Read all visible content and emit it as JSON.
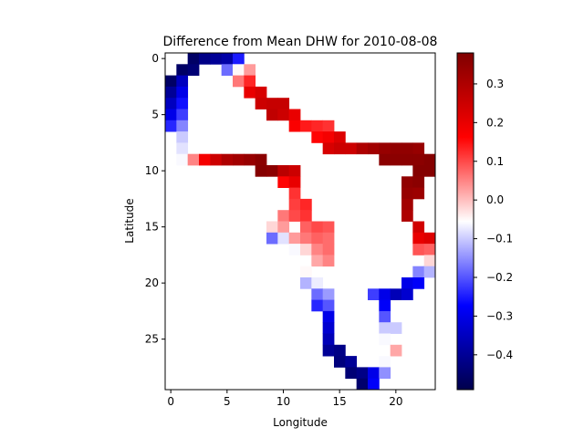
{
  "chart_data": {
    "type": "heatmap",
    "title": "Difference from Mean DHW for 2010-08-08",
    "xlabel": "Longitude",
    "ylabel": "Latitude",
    "x_ticks": [
      0,
      5,
      10,
      15,
      20
    ],
    "y_ticks": [
      0,
      5,
      10,
      15,
      20,
      25
    ],
    "colorbar_ticks": [
      0.3,
      0.2,
      0.1,
      0.0,
      -0.1,
      -0.2,
      -0.3,
      -0.4
    ],
    "colorbar_tick_labels": [
      "0.3",
      "0.2",
      "0.1",
      "0.0",
      "−0.1",
      "−0.2",
      "−0.3",
      "−0.4"
    ],
    "x_range": [
      -0.5,
      23.5
    ],
    "y_range": [
      29.5,
      -0.5
    ],
    "vmin": -0.49,
    "vmax": 0.38,
    "colormap": "seismic",
    "grid": false,
    "cells": [
      [
        2,
        0,
        -0.46
      ],
      [
        3,
        0,
        -0.42
      ],
      [
        4,
        0,
        -0.4
      ],
      [
        5,
        0,
        -0.38
      ],
      [
        6,
        0,
        -0.25
      ],
      [
        1,
        1,
        -0.46
      ],
      [
        2,
        1,
        -0.44
      ],
      [
        5,
        1,
        -0.18
      ],
      [
        6,
        1,
        -0.05
      ],
      [
        7,
        1,
        0.03
      ],
      [
        0,
        2,
        -0.46
      ],
      [
        1,
        2,
        -0.35
      ],
      [
        6,
        2,
        0.06
      ],
      [
        7,
        2,
        0.13
      ],
      [
        0,
        3,
        -0.4
      ],
      [
        1,
        3,
        -0.3
      ],
      [
        7,
        3,
        0.2
      ],
      [
        8,
        3,
        0.23
      ],
      [
        0,
        4,
        -0.35
      ],
      [
        1,
        4,
        -0.26
      ],
      [
        8,
        4,
        0.25
      ],
      [
        9,
        4,
        0.26
      ],
      [
        10,
        4,
        0.26
      ],
      [
        0,
        5,
        -0.3
      ],
      [
        1,
        5,
        -0.22
      ],
      [
        9,
        5,
        0.27
      ],
      [
        10,
        5,
        0.25
      ],
      [
        11,
        5,
        0.2
      ],
      [
        0,
        6,
        -0.24
      ],
      [
        1,
        6,
        -0.16
      ],
      [
        11,
        6,
        0.17
      ],
      [
        12,
        6,
        0.14
      ],
      [
        13,
        6,
        0.13
      ],
      [
        14,
        6,
        0.12
      ],
      [
        1,
        7,
        -0.1
      ],
      [
        13,
        7,
        0.16
      ],
      [
        14,
        7,
        0.18
      ],
      [
        15,
        7,
        0.22
      ],
      [
        1,
        8,
        -0.08
      ],
      [
        14,
        8,
        0.23
      ],
      [
        15,
        8,
        0.25
      ],
      [
        16,
        8,
        0.25
      ],
      [
        17,
        8,
        0.3
      ],
      [
        18,
        8,
        0.32
      ],
      [
        19,
        8,
        0.34
      ],
      [
        20,
        8,
        0.35
      ],
      [
        21,
        8,
        0.35
      ],
      [
        22,
        8,
        0.34
      ],
      [
        1,
        9,
        -0.06
      ],
      [
        2,
        9,
        0.05
      ],
      [
        3,
        9,
        0.18
      ],
      [
        4,
        9,
        0.25
      ],
      [
        5,
        9,
        0.3
      ],
      [
        6,
        9,
        0.32
      ],
      [
        7,
        9,
        0.34
      ],
      [
        8,
        9,
        0.36
      ],
      [
        19,
        9,
        0.36
      ],
      [
        20,
        9,
        0.36
      ],
      [
        21,
        9,
        0.36
      ],
      [
        22,
        9,
        0.36
      ],
      [
        23,
        9,
        0.37
      ],
      [
        8,
        10,
        0.37
      ],
      [
        9,
        10,
        0.36
      ],
      [
        10,
        10,
        0.28
      ],
      [
        11,
        10,
        0.25
      ],
      [
        22,
        10,
        0.37
      ],
      [
        23,
        10,
        0.37
      ],
      [
        10,
        11,
        0.16
      ],
      [
        11,
        11,
        0.2
      ],
      [
        21,
        11,
        0.35
      ],
      [
        22,
        11,
        0.36
      ],
      [
        11,
        12,
        0.12
      ],
      [
        21,
        12,
        0.34
      ],
      [
        22,
        12,
        0.33
      ],
      [
        11,
        13,
        0.11
      ],
      [
        12,
        13,
        0.13
      ],
      [
        21,
        13,
        0.32
      ],
      [
        10,
        14,
        0.06
      ],
      [
        11,
        14,
        0.1
      ],
      [
        12,
        14,
        0.12
      ],
      [
        21,
        14,
        0.3
      ],
      [
        9,
        15,
        -0.02
      ],
      [
        10,
        15,
        0.03
      ],
      [
        12,
        15,
        0.08
      ],
      [
        13,
        15,
        0.1
      ],
      [
        14,
        15,
        0.09
      ],
      [
        22,
        15,
        0.24
      ],
      [
        9,
        16,
        -0.18
      ],
      [
        10,
        16,
        -0.08
      ],
      [
        11,
        16,
        0.03
      ],
      [
        12,
        16,
        0.06
      ],
      [
        13,
        16,
        0.08
      ],
      [
        14,
        16,
        0.07
      ],
      [
        22,
        16,
        0.2
      ],
      [
        23,
        16,
        0.22
      ],
      [
        11,
        17,
        -0.06
      ],
      [
        12,
        17,
        -0.02
      ],
      [
        13,
        17,
        0.05
      ],
      [
        14,
        17,
        0.07
      ],
      [
        22,
        17,
        0.09
      ],
      [
        23,
        17,
        0.08
      ],
      [
        13,
        18,
        0.02
      ],
      [
        14,
        18,
        0.05
      ],
      [
        23,
        18,
        -0.02
      ],
      [
        12,
        19,
        -0.05
      ],
      [
        22,
        19,
        -0.16
      ],
      [
        23,
        19,
        -0.12
      ],
      [
        12,
        20,
        -0.12
      ],
      [
        13,
        20,
        -0.07
      ],
      [
        21,
        20,
        -0.3
      ],
      [
        22,
        20,
        -0.28
      ],
      [
        13,
        21,
        -0.18
      ],
      [
        14,
        21,
        -0.14
      ],
      [
        18,
        21,
        -0.22
      ],
      [
        19,
        21,
        -0.3
      ],
      [
        20,
        21,
        -0.36
      ],
      [
        21,
        21,
        -0.33
      ],
      [
        13,
        22,
        -0.24
      ],
      [
        14,
        22,
        -0.2
      ],
      [
        19,
        22,
        -0.28
      ],
      [
        14,
        23,
        -0.3
      ],
      [
        19,
        23,
        -0.2
      ],
      [
        14,
        24,
        -0.33
      ],
      [
        19,
        24,
        -0.1
      ],
      [
        20,
        24,
        -0.1
      ],
      [
        14,
        25,
        -0.36
      ],
      [
        19,
        25,
        -0.06
      ],
      [
        14,
        26,
        -0.4
      ],
      [
        15,
        26,
        -0.42
      ],
      [
        20,
        26,
        0.02
      ],
      [
        15,
        27,
        -0.43
      ],
      [
        16,
        27,
        -0.4
      ],
      [
        19,
        27,
        -0.06
      ],
      [
        16,
        28,
        -0.44
      ],
      [
        17,
        28,
        -0.42
      ],
      [
        18,
        28,
        -0.3
      ],
      [
        19,
        28,
        -0.15
      ],
      [
        17,
        29,
        -0.45
      ],
      [
        18,
        29,
        -0.28
      ]
    ]
  }
}
